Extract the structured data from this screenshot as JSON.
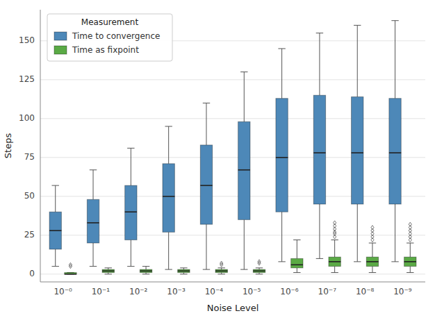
{
  "chart_data": {
    "type": "box",
    "xlabel": "Noise Level",
    "ylabel": "Steps",
    "categories": [
      "10⁻⁰",
      "10⁻¹",
      "10⁻²",
      "10⁻³",
      "10⁻⁴",
      "10⁻⁵",
      "10⁻⁶",
      "10⁻⁷",
      "10⁻⁸",
      "10⁻⁹"
    ],
    "ylim": [
      -5,
      170
    ],
    "yticks": [
      0,
      25,
      50,
      75,
      100,
      125,
      150
    ],
    "grid": true,
    "legend": "upper left",
    "legend_title": "Measurement",
    "marker": "diamond",
    "series": [
      {
        "name": "Time to convergence",
        "color": "#4d88b8",
        "values": [
          {
            "q1": 16,
            "median": 28,
            "q3": 40,
            "whislo": 5,
            "whishi": 57,
            "fliers": []
          },
          {
            "q1": 20,
            "median": 33,
            "q3": 48,
            "whislo": 5,
            "whishi": 67,
            "fliers": []
          },
          {
            "q1": 22,
            "median": 40,
            "q3": 57,
            "whislo": 5,
            "whishi": 81,
            "fliers": []
          },
          {
            "q1": 27,
            "median": 50,
            "q3": 71,
            "whislo": 3,
            "whishi": 95,
            "fliers": []
          },
          {
            "q1": 32,
            "median": 57,
            "q3": 83,
            "whislo": 3,
            "whishi": 110,
            "fliers": []
          },
          {
            "q1": 35,
            "median": 67,
            "q3": 98,
            "whislo": 3,
            "whishi": 130,
            "fliers": []
          },
          {
            "q1": 40,
            "median": 75,
            "q3": 113,
            "whislo": 8,
            "whishi": 145,
            "fliers": []
          },
          {
            "q1": 45,
            "median": 78,
            "q3": 115,
            "whislo": 10,
            "whishi": 155,
            "fliers": []
          },
          {
            "q1": 45,
            "median": 78,
            "q3": 114,
            "whislo": 8,
            "whishi": 160,
            "fliers": []
          },
          {
            "q1": 45,
            "median": 78,
            "q3": 113,
            "whislo": 8,
            "whishi": 163,
            "fliers": []
          }
        ]
      },
      {
        "name": "Time as fixpoint",
        "color": "#5aaa45",
        "values": [
          {
            "q1": 0,
            "median": 0,
            "q3": 1,
            "whislo": 0,
            "whishi": 1,
            "fliers": [
              5,
              6
            ]
          },
          {
            "q1": 1,
            "median": 2,
            "q3": 3,
            "whislo": 0,
            "whishi": 4,
            "fliers": []
          },
          {
            "q1": 1,
            "median": 2,
            "q3": 3,
            "whislo": 0,
            "whishi": 5,
            "fliers": []
          },
          {
            "q1": 1,
            "median": 2,
            "q3": 3,
            "whislo": 0,
            "whishi": 4,
            "fliers": []
          },
          {
            "q1": 1,
            "median": 2,
            "q3": 3,
            "whislo": 0,
            "whishi": 4,
            "fliers": [
              6,
              7
            ]
          },
          {
            "q1": 1,
            "median": 2,
            "q3": 3,
            "whislo": 0,
            "whishi": 4,
            "fliers": [
              7,
              8
            ]
          },
          {
            "q1": 4,
            "median": 6,
            "q3": 10,
            "whislo": 1,
            "whishi": 22,
            "fliers": []
          },
          {
            "q1": 5,
            "median": 8,
            "q3": 11,
            "whislo": 1,
            "whishi": 22,
            "fliers": [
              24,
              26,
              27,
              29,
              31,
              33
            ]
          },
          {
            "q1": 5,
            "median": 8,
            "q3": 11,
            "whislo": 1,
            "whishi": 20,
            "fliers": [
              22,
              24,
              26,
              28,
              30
            ]
          },
          {
            "q1": 5,
            "median": 8,
            "q3": 11,
            "whislo": 1,
            "whishi": 20,
            "fliers": [
              22,
              24,
              26,
              28,
              30,
              32
            ]
          }
        ]
      }
    ]
  }
}
